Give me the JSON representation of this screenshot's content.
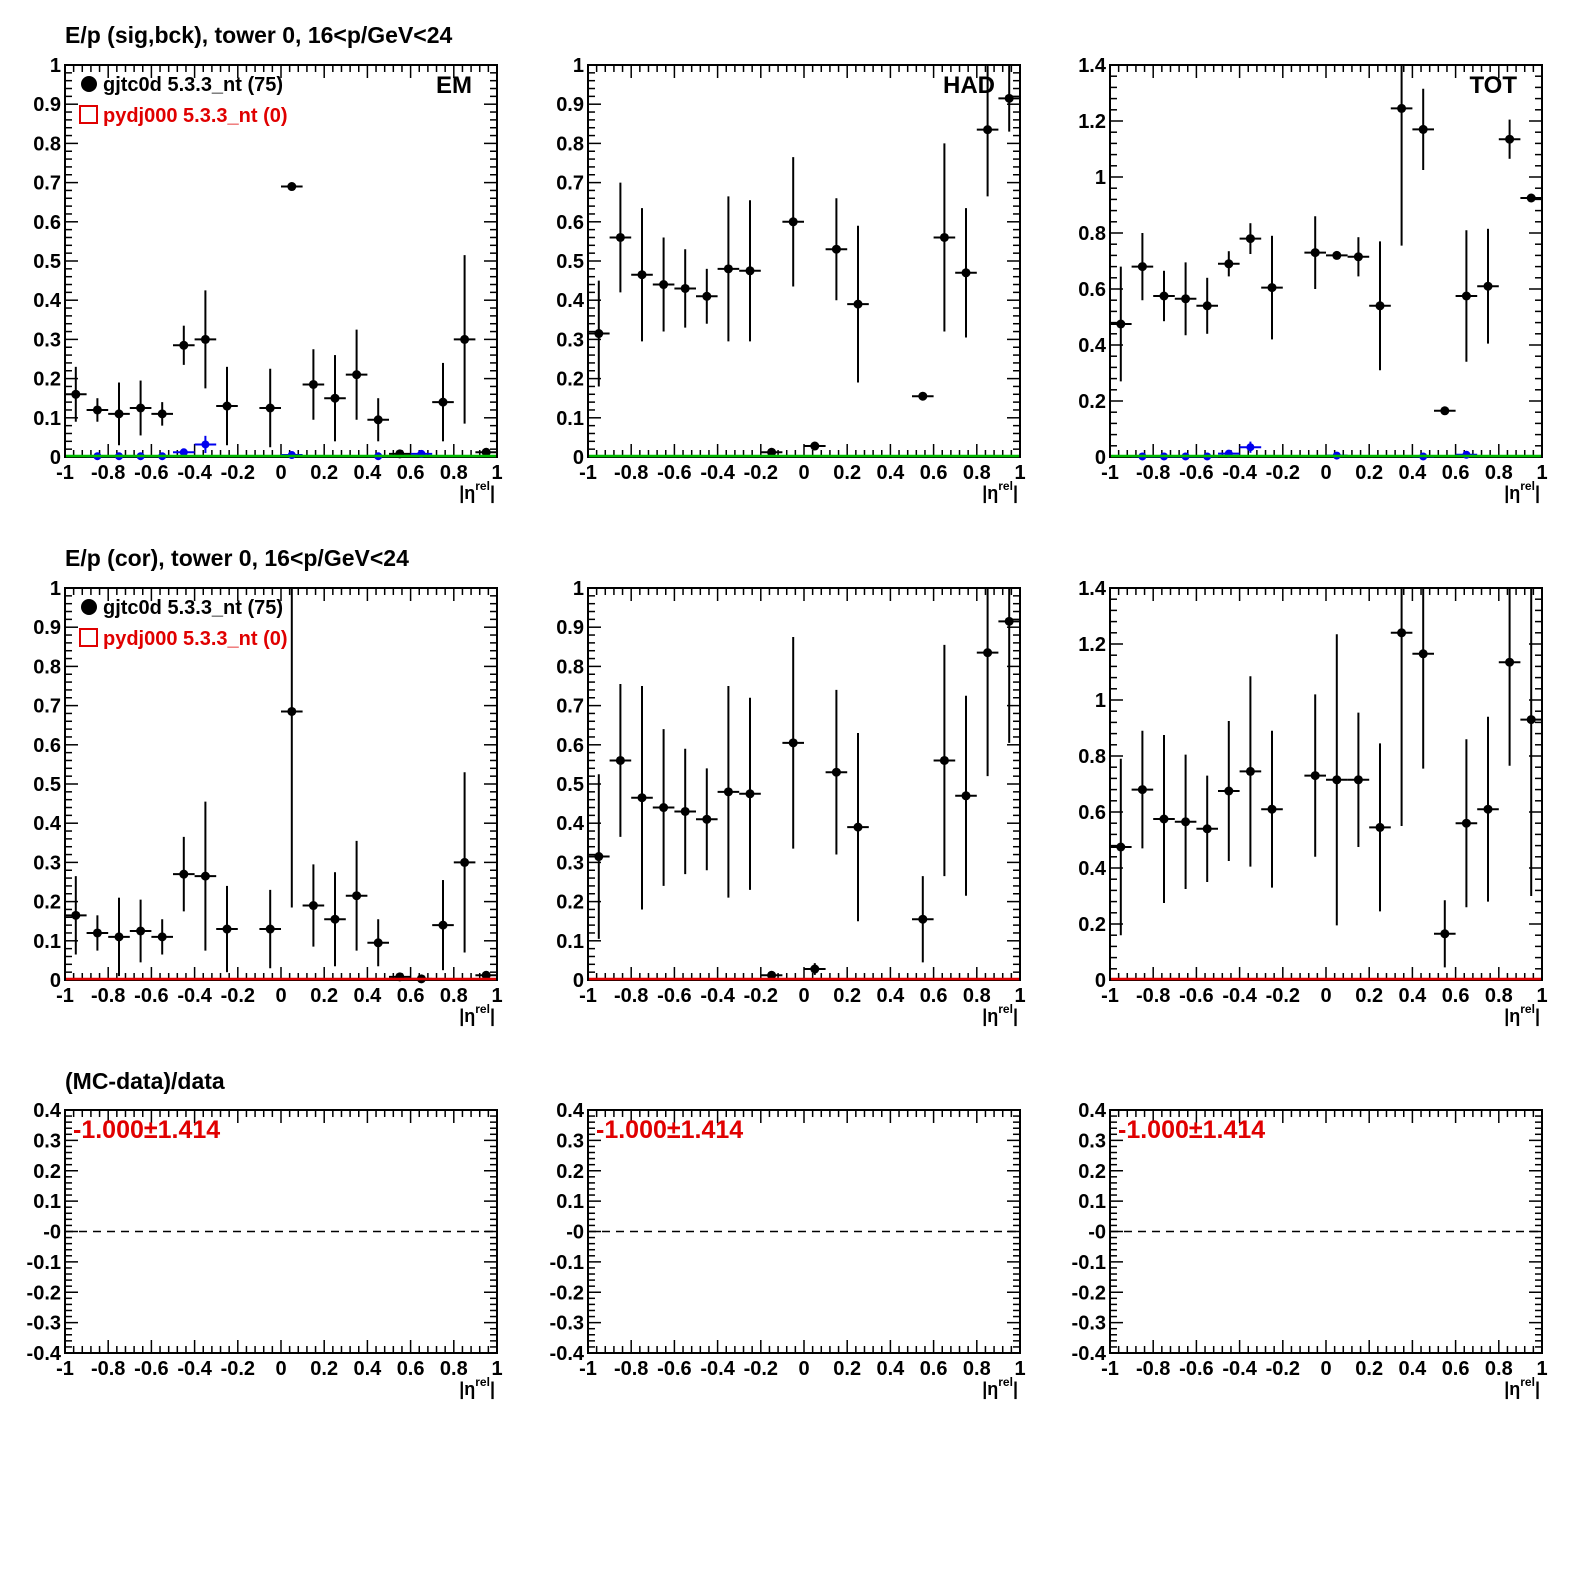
{
  "rows": [
    {
      "title": "E/p (sig,bck), tower 0, 16<p/GeV<24"
    },
    {
      "title": "E/p (cor), tower 0, 16<p/GeV<24"
    },
    {
      "title": "(MC-data)/data"
    }
  ],
  "legend": {
    "data_label": "gjtc0d 5.3.3_nt (75)",
    "mc_label": "pydj000 5.3.3_nt (0)",
    "data_color": "#000000",
    "mc_color": "#e00000"
  },
  "colors": {
    "data": "#000000",
    "background": "#0000ee",
    "mc_line_top": "#00bb00",
    "mc_line_mid": "#e00000",
    "ratio_text": "#e00000"
  },
  "axis": {
    "xlabel": "|η",
    "xlabel_sup": "rel",
    "xlabel_close": "|",
    "x_ticks": [
      "-1",
      "-0.8",
      "-0.6",
      "-0.4",
      "-0.2",
      "0",
      "0.2",
      "0.4",
      "0.6",
      "0.8",
      "1"
    ],
    "y_ticks_em_had": [
      "0",
      "0.1",
      "0.2",
      "0.3",
      "0.4",
      "0.5",
      "0.6",
      "0.7",
      "0.8",
      "0.9",
      "1"
    ],
    "y_ticks_tot": [
      "0",
      "0.2",
      "0.4",
      "0.6",
      "0.8",
      "1",
      "1.2",
      "1.4"
    ],
    "y_ticks_ratio": [
      "-0.4",
      "-0.3",
      "-0.2",
      "-0.1",
      "-0",
      "0.1",
      "0.2",
      "0.3",
      "0.4"
    ]
  },
  "panel_labels": {
    "em": "EM",
    "had": "HAD",
    "tot": "TOT"
  },
  "ratio_text": "-1.000±1.414",
  "chart_data": [
    {
      "id": "sig-em",
      "type": "scatter",
      "panel_label": "EM",
      "xlim": [
        -1,
        1
      ],
      "ylim": [
        0,
        1
      ],
      "series": [
        {
          "name": "gjtc0d 5.3.3_nt (75)",
          "color": "#000000",
          "x": [
            -0.95,
            -0.85,
            -0.75,
            -0.65,
            -0.55,
            -0.45,
            -0.35,
            -0.25,
            -0.05,
            0.05,
            0.15,
            0.25,
            0.35,
            0.45,
            0.55,
            0.75,
            0.85,
            0.95
          ],
          "y": [
            0.16,
            0.12,
            0.11,
            0.125,
            0.11,
            0.285,
            0.3,
            0.13,
            0.125,
            0.69,
            0.185,
            0.15,
            0.21,
            0.095,
            0.008,
            0.14,
            0.3,
            0.012
          ],
          "err": [
            0.07,
            0.03,
            0.08,
            0.07,
            0.03,
            0.05,
            0.125,
            0.1,
            0.1,
            0.005,
            0.09,
            0.11,
            0.115,
            0.055,
            0.004,
            0.1,
            0.215,
            0.006
          ]
        },
        {
          "name": "",
          "color": "#0000ee",
          "x": [
            -0.85,
            -0.75,
            -0.65,
            -0.55,
            -0.45,
            -0.35,
            0.05,
            0.45,
            0.65
          ],
          "y": [
            0.002,
            0.002,
            0.002,
            0.002,
            0.012,
            0.032,
            0.005,
            0.002,
            0.008
          ],
          "err": [
            0.002,
            0.002,
            0.002,
            0.002,
            0.008,
            0.022,
            0.004,
            0.002,
            0.005
          ]
        },
        {
          "name": "pydj000 5.3.3_nt (0)",
          "color": "#00bb00",
          "line_y": 0
        }
      ]
    },
    {
      "id": "sig-had",
      "type": "scatter",
      "panel_label": "HAD",
      "xlim": [
        -1,
        1
      ],
      "ylim": [
        0,
        1
      ],
      "series": [
        {
          "name": "",
          "color": "#000000",
          "x": [
            -0.95,
            -0.85,
            -0.75,
            -0.65,
            -0.55,
            -0.45,
            -0.35,
            -0.25,
            -0.15,
            -0.05,
            0.05,
            0.15,
            0.25,
            0.55,
            0.65,
            0.75,
            0.85,
            0.95
          ],
          "y": [
            0.315,
            0.56,
            0.465,
            0.44,
            0.43,
            0.41,
            0.48,
            0.475,
            0.012,
            0.6,
            0.028,
            0.53,
            0.39,
            0.155,
            0.56,
            0.47,
            0.835,
            0.915
          ],
          "err": [
            0.135,
            0.14,
            0.17,
            0.12,
            0.1,
            0.07,
            0.185,
            0.18,
            0.004,
            0.165,
            0.006,
            0.13,
            0.2,
            0.004,
            0.24,
            0.165,
            0.17,
            0.085
          ]
        },
        {
          "name": "",
          "color": "#00bb00",
          "line_y": 0
        }
      ]
    },
    {
      "id": "sig-tot",
      "type": "scatter",
      "panel_label": "TOT",
      "xlim": [
        -1,
        1
      ],
      "ylim": [
        0,
        1.4
      ],
      "series": [
        {
          "name": "",
          "color": "#000000",
          "x": [
            -0.95,
            -0.85,
            -0.75,
            -0.65,
            -0.55,
            -0.45,
            -0.35,
            -0.25,
            -0.05,
            0.05,
            0.15,
            0.25,
            0.35,
            0.45,
            0.55,
            0.65,
            0.75,
            0.85,
            0.95
          ],
          "y": [
            0.475,
            0.68,
            0.575,
            0.565,
            0.54,
            0.69,
            0.78,
            0.605,
            0.73,
            0.72,
            0.715,
            0.54,
            1.245,
            1.17,
            0.165,
            0.575,
            0.61,
            1.135,
            0.925
          ],
          "err": [
            0.205,
            0.12,
            0.09,
            0.13,
            0.1,
            0.045,
            0.055,
            0.185,
            0.13,
            0.005,
            0.07,
            0.23,
            0.49,
            0.145,
            0.004,
            0.235,
            0.205,
            0.07,
            0.005
          ]
        },
        {
          "name": "",
          "color": "#0000ee",
          "x": [
            -0.85,
            -0.75,
            -0.65,
            -0.55,
            -0.45,
            -0.35,
            0.05,
            0.45,
            0.65
          ],
          "y": [
            0.002,
            0.002,
            0.002,
            0.002,
            0.012,
            0.035,
            0.005,
            0.002,
            0.008
          ],
          "err": [
            0.002,
            0.002,
            0.002,
            0.002,
            0.008,
            0.02,
            0.004,
            0.002,
            0.005
          ]
        },
        {
          "name": "",
          "color": "#00bb00",
          "line_y": 0
        }
      ]
    },
    {
      "id": "cor-em",
      "type": "scatter",
      "xlim": [
        -1,
        1
      ],
      "ylim": [
        0,
        1
      ],
      "series": [
        {
          "name": "gjtc0d 5.3.3_nt (75)",
          "color": "#000000",
          "x": [
            -0.95,
            -0.85,
            -0.75,
            -0.65,
            -0.55,
            -0.45,
            -0.35,
            -0.25,
            -0.05,
            0.05,
            0.15,
            0.25,
            0.35,
            0.45,
            0.55,
            0.65,
            0.75,
            0.85,
            0.95
          ],
          "y": [
            0.165,
            0.12,
            0.11,
            0.125,
            0.11,
            0.27,
            0.265,
            0.13,
            0.13,
            0.685,
            0.19,
            0.155,
            0.215,
            0.095,
            0.008,
            0.003,
            0.14,
            0.3,
            0.012
          ],
          "err": [
            0.1,
            0.045,
            0.1,
            0.08,
            0.045,
            0.095,
            0.19,
            0.11,
            0.1,
            0.5,
            0.105,
            0.12,
            0.14,
            0.06,
            0.004,
            0.003,
            0.115,
            0.23,
            0.006
          ]
        },
        {
          "name": "pydj000 5.3.3_nt (0)",
          "color": "#e00000",
          "line_y": 0
        }
      ]
    },
    {
      "id": "cor-had",
      "type": "scatter",
      "xlim": [
        -1,
        1
      ],
      "ylim": [
        0,
        1
      ],
      "series": [
        {
          "name": "",
          "color": "#000000",
          "x": [
            -0.95,
            -0.85,
            -0.75,
            -0.65,
            -0.55,
            -0.45,
            -0.35,
            -0.25,
            -0.15,
            -0.05,
            0.05,
            0.15,
            0.25,
            0.55,
            0.65,
            0.75,
            0.85,
            0.95
          ],
          "y": [
            0.315,
            0.56,
            0.465,
            0.44,
            0.43,
            0.41,
            0.48,
            0.475,
            0.012,
            0.605,
            0.028,
            0.53,
            0.39,
            0.155,
            0.56,
            0.47,
            0.835,
            0.915
          ],
          "err": [
            0.21,
            0.195,
            0.285,
            0.2,
            0.16,
            0.13,
            0.27,
            0.245,
            0.005,
            0.27,
            0.015,
            0.21,
            0.24,
            0.11,
            0.295,
            0.255,
            0.315,
            0.31
          ]
        },
        {
          "name": "",
          "color": "#e00000",
          "line_y": 0
        }
      ]
    },
    {
      "id": "cor-tot",
      "type": "scatter",
      "xlim": [
        -1,
        1
      ],
      "ylim": [
        0,
        1.4
      ],
      "series": [
        {
          "name": "",
          "color": "#000000",
          "x": [
            -0.95,
            -0.85,
            -0.75,
            -0.65,
            -0.55,
            -0.45,
            -0.35,
            -0.25,
            -0.05,
            0.05,
            0.15,
            0.25,
            0.35,
            0.45,
            0.55,
            0.65,
            0.75,
            0.85,
            0.95
          ],
          "y": [
            0.475,
            0.68,
            0.575,
            0.565,
            0.54,
            0.675,
            0.745,
            0.61,
            0.73,
            0.715,
            0.715,
            0.545,
            1.24,
            1.165,
            0.165,
            0.56,
            0.61,
            1.135,
            0.93
          ],
          "err": [
            0.315,
            0.21,
            0.3,
            0.24,
            0.19,
            0.25,
            0.34,
            0.28,
            0.29,
            0.52,
            0.24,
            0.3,
            0.69,
            0.41,
            0.12,
            0.3,
            0.33,
            0.37,
            0.63
          ]
        },
        {
          "name": "",
          "color": "#e00000",
          "line_y": 0
        }
      ]
    },
    {
      "id": "ratio-em",
      "type": "line",
      "xlim": [
        -1,
        1
      ],
      "ylim": [
        -0.4,
        0.4
      ],
      "reference_line": 0,
      "annotation": "-1.000±1.414"
    },
    {
      "id": "ratio-had",
      "type": "line",
      "xlim": [
        -1,
        1
      ],
      "ylim": [
        -0.4,
        0.4
      ],
      "reference_line": 0,
      "annotation": "-1.000±1.414"
    },
    {
      "id": "ratio-tot",
      "type": "line",
      "xlim": [
        -1,
        1
      ],
      "ylim": [
        -0.4,
        0.4
      ],
      "reference_line": 0,
      "annotation": "-1.000±1.414"
    }
  ]
}
